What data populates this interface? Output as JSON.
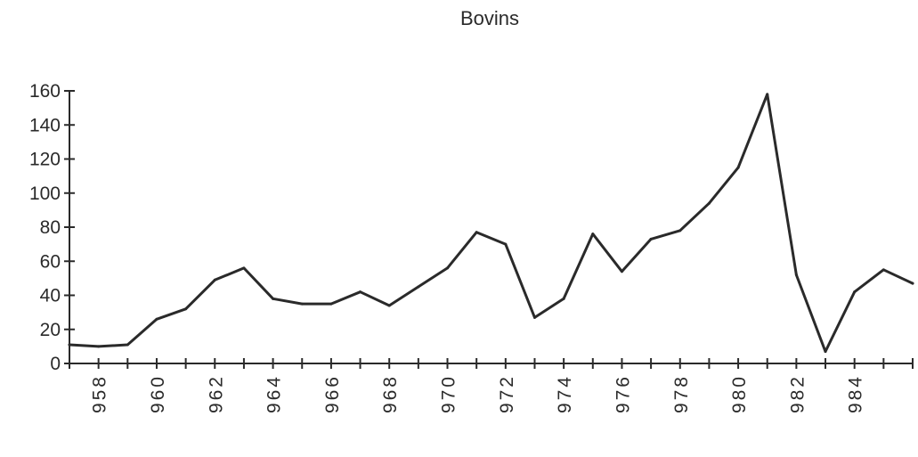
{
  "chart_data": {
    "type": "line",
    "title": "Bovins",
    "xlabel": "",
    "ylabel": "",
    "x": [
      1957,
      1958,
      1959,
      1960,
      1961,
      1962,
      1963,
      1964,
      1965,
      1966,
      1967,
      1968,
      1969,
      1970,
      1971,
      1972,
      1973,
      1974,
      1975,
      1976,
      1977,
      1978,
      1979,
      1980,
      1981,
      1982,
      1983,
      1984,
      1985,
      1986
    ],
    "xlim": [
      1957,
      1986
    ],
    "xtick_values": [
      1958,
      1960,
      1962,
      1964,
      1966,
      1968,
      1970,
      1972,
      1974,
      1976,
      1978,
      1980,
      1982,
      1984
    ],
    "xtick_labels": [
      "958",
      "960",
      "962",
      "964",
      "966",
      "968",
      "970",
      "972",
      "974",
      "976",
      "978",
      "980",
      "982",
      "984"
    ],
    "series": [
      {
        "values": [
          11,
          10,
          11,
          26,
          32,
          49,
          56,
          38,
          35,
          35,
          42,
          34,
          45,
          56,
          77,
          70,
          27,
          38,
          76,
          54,
          73,
          78,
          94,
          115,
          158,
          52,
          7,
          42,
          55,
          47
        ]
      }
    ],
    "ylim": [
      0,
      160
    ],
    "ytick_values": [
      0,
      20,
      40,
      60,
      80,
      100,
      120,
      140,
      160
    ],
    "ytick_labels": [
      "0",
      "20",
      "40",
      "60",
      "80",
      "100",
      "120",
      "140",
      "160"
    ],
    "grid": false,
    "legend": "none",
    "colors": {
      "line": "#2a2a2a",
      "axis": "#2a2a2a",
      "background": "#ffffff"
    }
  }
}
